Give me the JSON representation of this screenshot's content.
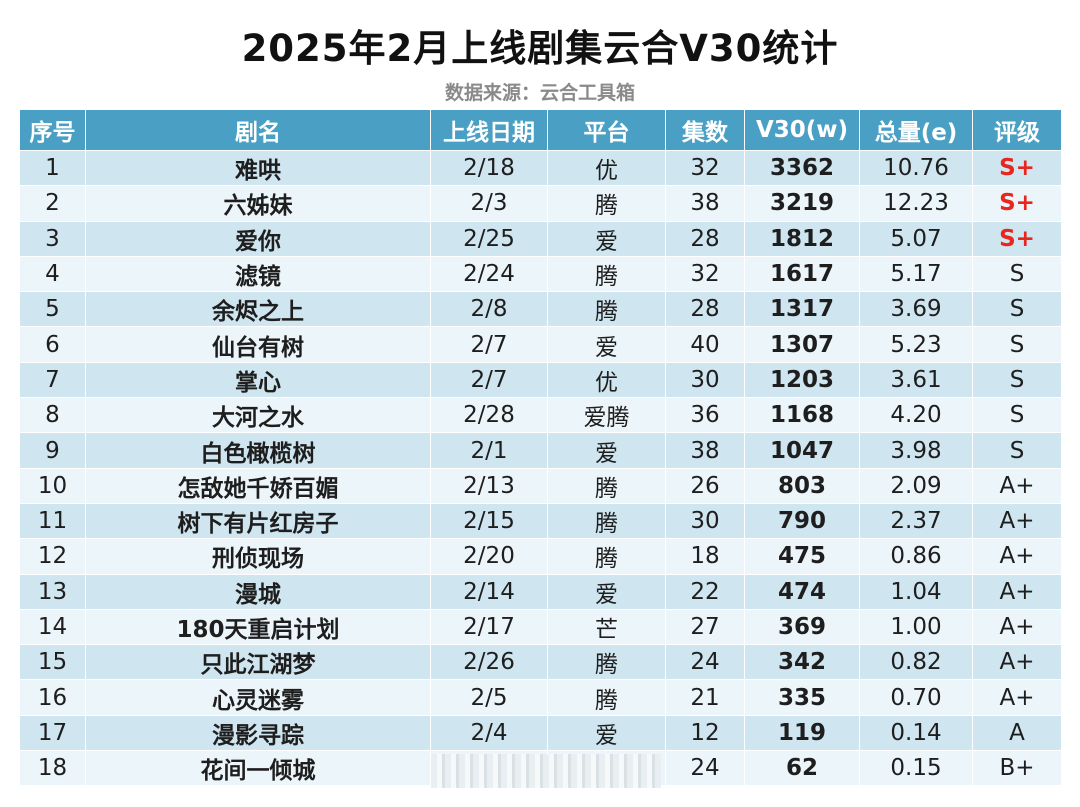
{
  "title": "2025年2月上线剧集云合V30统计",
  "subtitle": "数据来源：云合工具箱",
  "colors": {
    "header_bg": "#4aa0c4",
    "row_odd": "#cfe5f0",
    "row_even": "#ecf5f9",
    "grade_highlight": "#e8261e"
  },
  "table": {
    "headers": [
      "序号",
      "剧名",
      "上线日期",
      "平台",
      "集数",
      "V30(w)",
      "总量(e)",
      "评级"
    ],
    "rows": [
      {
        "no": "1",
        "name": "难哄",
        "date": "2/18",
        "platform": "优",
        "episodes": "32",
        "v30": "3362",
        "total": "10.76",
        "grade": "S+"
      },
      {
        "no": "2",
        "name": "六姊妹",
        "date": "2/3",
        "platform": "腾",
        "episodes": "38",
        "v30": "3219",
        "total": "12.23",
        "grade": "S+"
      },
      {
        "no": "3",
        "name": "爱你",
        "date": "2/25",
        "platform": "爱",
        "episodes": "28",
        "v30": "1812",
        "total": "5.07",
        "grade": "S+"
      },
      {
        "no": "4",
        "name": "滤镜",
        "date": "2/24",
        "platform": "腾",
        "episodes": "32",
        "v30": "1617",
        "total": "5.17",
        "grade": "S"
      },
      {
        "no": "5",
        "name": "余烬之上",
        "date": "2/8",
        "platform": "腾",
        "episodes": "28",
        "v30": "1317",
        "total": "3.69",
        "grade": "S"
      },
      {
        "no": "6",
        "name": "仙台有树",
        "date": "2/7",
        "platform": "爱",
        "episodes": "40",
        "v30": "1307",
        "total": "5.23",
        "grade": "S"
      },
      {
        "no": "7",
        "name": "掌心",
        "date": "2/7",
        "platform": "优",
        "episodes": "30",
        "v30": "1203",
        "total": "3.61",
        "grade": "S"
      },
      {
        "no": "8",
        "name": "大河之水",
        "date": "2/28",
        "platform": "爱腾",
        "episodes": "36",
        "v30": "1168",
        "total": "4.20",
        "grade": "S"
      },
      {
        "no": "9",
        "name": "白色橄榄树",
        "date": "2/1",
        "platform": "爱",
        "episodes": "38",
        "v30": "1047",
        "total": "3.98",
        "grade": "S"
      },
      {
        "no": "10",
        "name": "怎敌她千娇百媚",
        "date": "2/13",
        "platform": "腾",
        "episodes": "26",
        "v30": "803",
        "total": "2.09",
        "grade": "A+"
      },
      {
        "no": "11",
        "name": "树下有片红房子",
        "date": "2/15",
        "platform": "腾",
        "episodes": "30",
        "v30": "790",
        "total": "2.37",
        "grade": "A+"
      },
      {
        "no": "12",
        "name": "刑侦现场",
        "date": "2/20",
        "platform": "腾",
        "episodes": "18",
        "v30": "475",
        "total": "0.86",
        "grade": "A+"
      },
      {
        "no": "13",
        "name": "漫城",
        "date": "2/14",
        "platform": "爱",
        "episodes": "22",
        "v30": "474",
        "total": "1.04",
        "grade": "A+"
      },
      {
        "no": "14",
        "name": "180天重启计划",
        "date": "2/17",
        "platform": "芒",
        "episodes": "27",
        "v30": "369",
        "total": "1.00",
        "grade": "A+"
      },
      {
        "no": "15",
        "name": "只此江湖梦",
        "date": "2/26",
        "platform": "腾",
        "episodes": "24",
        "v30": "342",
        "total": "0.82",
        "grade": "A+"
      },
      {
        "no": "16",
        "name": "心灵迷雾",
        "date": "2/5",
        "platform": "腾",
        "episodes": "21",
        "v30": "335",
        "total": "0.70",
        "grade": "A+"
      },
      {
        "no": "17",
        "name": "漫影寻踪",
        "date": "2/4",
        "platform": "爱",
        "episodes": "12",
        "v30": "119",
        "total": "0.14",
        "grade": "A"
      },
      {
        "no": "18",
        "name": "花间一倾城",
        "date": "",
        "platform": "",
        "episodes": "24",
        "v30": "62",
        "total": "0.15",
        "grade": "B+"
      }
    ]
  }
}
